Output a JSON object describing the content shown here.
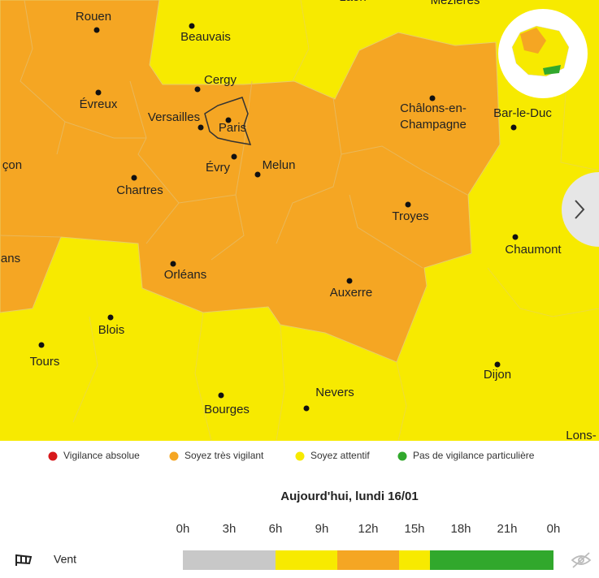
{
  "map": {
    "cities": [
      {
        "name": "Rouen"
      },
      {
        "name": "Beauvais"
      },
      {
        "name": "Cergy"
      },
      {
        "name": "Évreux"
      },
      {
        "name": "Versailles"
      },
      {
        "name": "Paris"
      },
      {
        "name": "Évry"
      },
      {
        "name": "Melun"
      },
      {
        "name": "Chartres"
      },
      {
        "name": "çon"
      },
      {
        "name": "ans"
      },
      {
        "name": "Orléans"
      },
      {
        "lines": [
          "Châlons-en-",
          "Champagne"
        ]
      },
      {
        "name": "Bar-le-Duc"
      },
      {
        "name": "Troyes"
      },
      {
        "name": "Chaumont"
      },
      {
        "name": "Auxerre"
      },
      {
        "name": "Blois"
      },
      {
        "name": "Tours"
      },
      {
        "name": "Dijon"
      },
      {
        "name": "Nevers"
      },
      {
        "name": "Bourges"
      },
      {
        "name": "Lons-"
      },
      {
        "name": "Laon"
      },
      {
        "name": "Mézières"
      }
    ]
  },
  "legend": [
    {
      "label": "Vigilance absolue",
      "color": "#d7191c"
    },
    {
      "label": "Soyez très vigilant",
      "color": "#f5a623"
    },
    {
      "label": "Soyez attentif",
      "color": "#f7ea00"
    },
    {
      "label": "Pas de vigilance particulière",
      "color": "#31a82c"
    }
  ],
  "timeline": {
    "title": "Aujourd'hui, lundi 16/01",
    "ticks": [
      {
        "value": 0,
        "label": "0h"
      },
      {
        "value": 3,
        "label": "3h"
      },
      {
        "value": 6,
        "label": "6h"
      },
      {
        "value": 9,
        "label": "9h"
      },
      {
        "value": 12,
        "label": "12h"
      },
      {
        "value": 15,
        "label": "15h"
      },
      {
        "value": 18,
        "label": "18h"
      },
      {
        "value": 21,
        "label": "21h"
      },
      {
        "value": 24,
        "label": "0h"
      }
    ],
    "rows": [
      {
        "label": "Vent",
        "segments": [
          {
            "from": 0,
            "to": 6,
            "color": "#c8c8c8"
          },
          {
            "from": 6,
            "to": 10,
            "color": "#f7ea00"
          },
          {
            "from": 10,
            "to": 14,
            "color": "#f5a623"
          },
          {
            "from": 14,
            "to": 16,
            "color": "#f7ea00"
          },
          {
            "from": 16,
            "to": 24,
            "color": "#31a82c"
          }
        ]
      }
    ]
  }
}
